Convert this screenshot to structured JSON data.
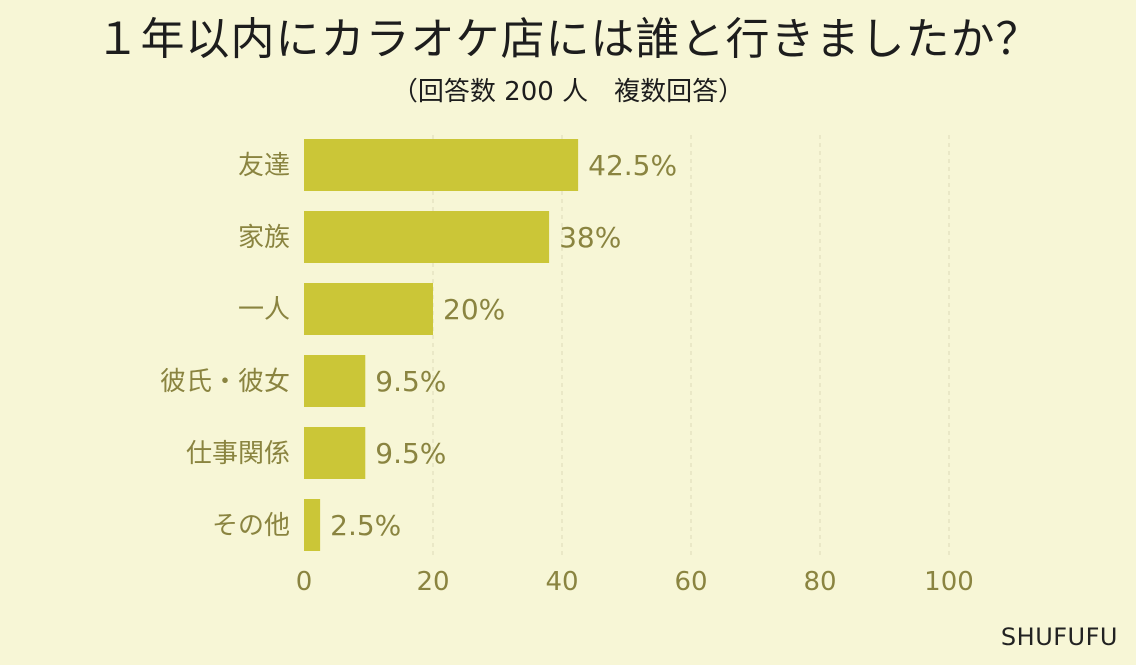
{
  "header": {
    "title": "１年以内にカラオケ店には誰と行きましたか？",
    "subtitle": "（回答数 200 人　複数回答）"
  },
  "brand": "SHUFUFU",
  "colors": {
    "background": "#f7f6d6",
    "bar": "#cbc637",
    "label": "#8a8440",
    "title": "#1d1d1d"
  },
  "chart_data": {
    "type": "bar",
    "orientation": "horizontal",
    "categories": [
      "友達",
      "家族",
      "一人",
      "彼氏・彼女",
      "仕事関係",
      "その他"
    ],
    "values": [
      42.5,
      38,
      20,
      9.5,
      9.5,
      2.5
    ],
    "value_labels": [
      "42.5%",
      "38%",
      "20%",
      "9.5%",
      "9.5%",
      "2.5%"
    ],
    "title": "１年以内にカラオケ店には誰と行きましたか？",
    "subtitle": "（回答数 200 人　複数回答）",
    "xlim": [
      0,
      100
    ],
    "xticks": [
      "0",
      "20",
      "40",
      "60",
      "80",
      "100"
    ],
    "grid": true
  }
}
